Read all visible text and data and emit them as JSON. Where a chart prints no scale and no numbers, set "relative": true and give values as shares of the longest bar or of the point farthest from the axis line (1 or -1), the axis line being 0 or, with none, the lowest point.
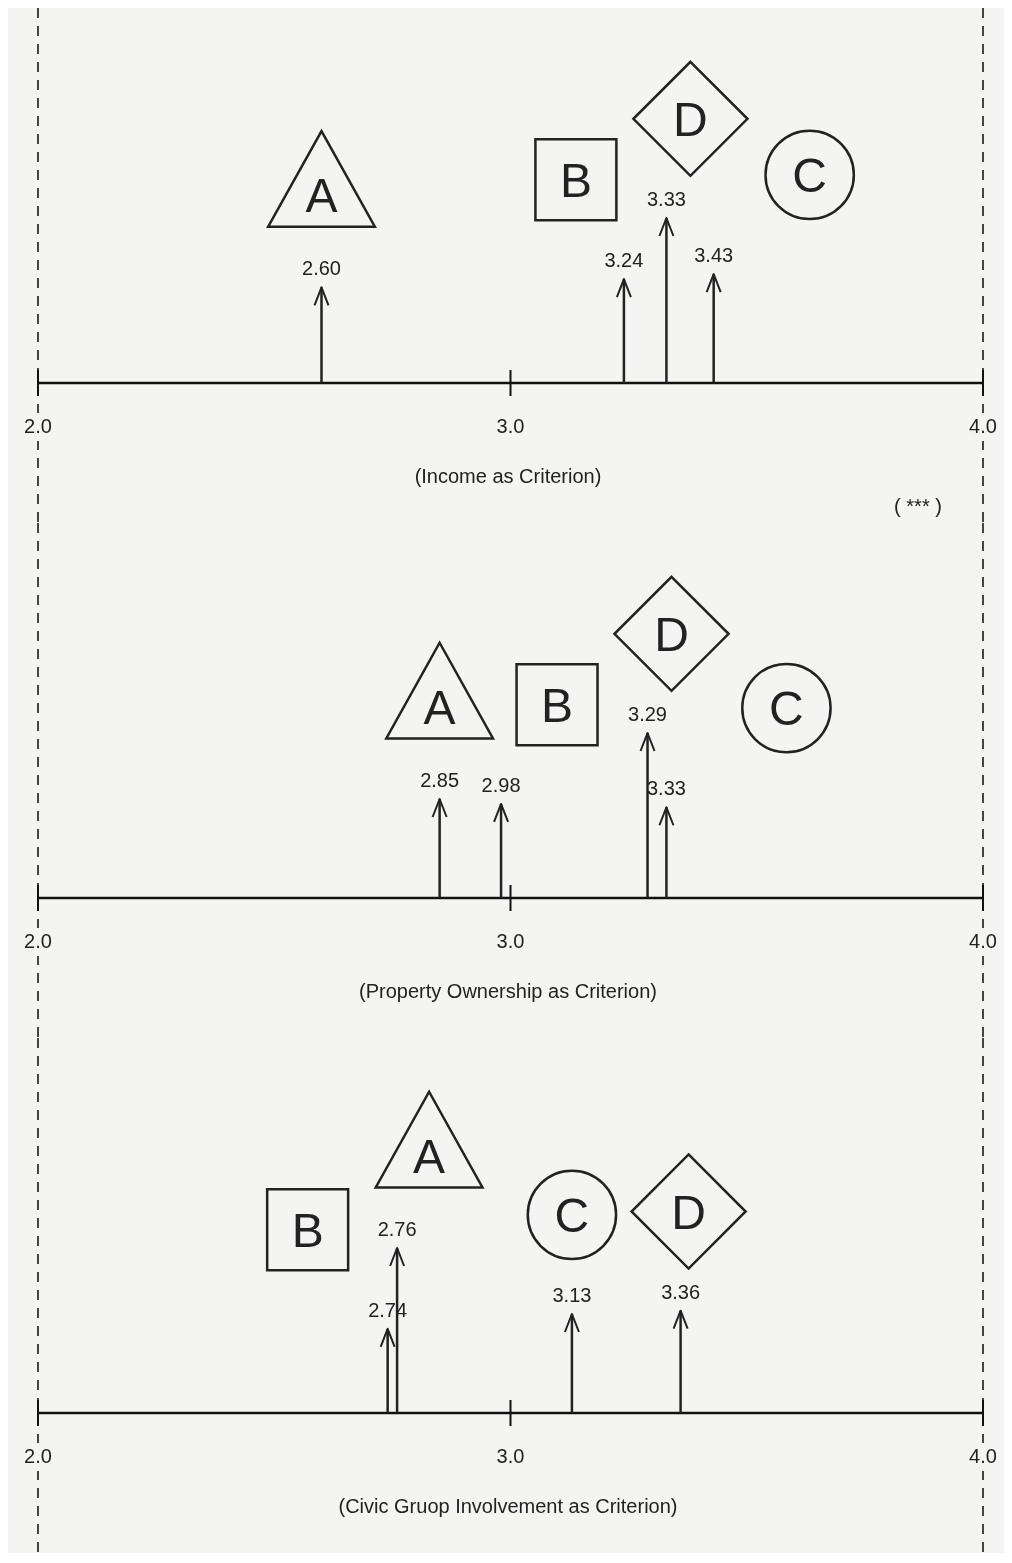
{
  "chart_data": [
    {
      "type": "bar",
      "relative": true,
      "xlabel": "(Income as Criterion)",
      "xlim": [
        2.0,
        4.0
      ],
      "xticks": [
        {
          "value": 2,
          "label": "2.0"
        },
        {
          "value": 3,
          "label": "3.0"
        },
        {
          "value": 4,
          "label": "4.0"
        }
      ],
      "legend": "top",
      "series": [
        {
          "name": "A",
          "marker": "triangle",
          "color": "#222222",
          "x": [
            2.6
          ],
          "values": [
            0.58
          ]
        },
        {
          "name": "B",
          "marker": "square",
          "color": "#222222",
          "x": [
            3.24
          ],
          "values": [
            0.63
          ]
        },
        {
          "name": "D",
          "marker": "diamond",
          "color": "#222222",
          "x": [
            3.33
          ],
          "values": [
            1
          ]
        },
        {
          "name": "C",
          "marker": "circle",
          "color": "#222222",
          "x": [
            3.43
          ],
          "values": [
            0.66
          ]
        }
      ],
      "annotations": [
        {
          "text": "2.60",
          "x": 2.6,
          "y": 0.58
        },
        {
          "text": "3.24",
          "x": 3.24,
          "y": 0.63
        },
        {
          "text": "3.33",
          "x": 3.33,
          "y": 1
        },
        {
          "text": "3.43",
          "x": 3.43,
          "y": 0.66
        },
        "( *** )"
      ],
      "ref_lines": [
        {
          "axis": "x",
          "value": 2.0,
          "line_style": "dashed"
        },
        {
          "axis": "x",
          "value": 4.0,
          "line_style": "dashed"
        }
      ]
    },
    {
      "type": "bar",
      "relative": true,
      "xlabel": "(Property Ownership as Criterion)",
      "xlim": [
        2.0,
        4.0
      ],
      "xticks": [
        {
          "value": 2,
          "label": "2.0"
        },
        {
          "value": 3,
          "label": "3.0"
        },
        {
          "value": 4,
          "label": "4.0"
        }
      ],
      "legend": "top",
      "series": [
        {
          "name": "A",
          "marker": "triangle",
          "color": "#222222",
          "x": [
            2.85
          ],
          "values": [
            0.6
          ]
        },
        {
          "name": "B",
          "marker": "square",
          "color": "#222222",
          "x": [
            2.98
          ],
          "values": [
            0.57
          ]
        },
        {
          "name": "D",
          "marker": "diamond",
          "color": "#222222",
          "x": [
            3.29
          ],
          "values": [
            1
          ]
        },
        {
          "name": "C",
          "marker": "circle",
          "color": "#222222",
          "x": [
            3.33
          ],
          "values": [
            0.55
          ]
        }
      ],
      "annotations": [
        {
          "text": "2.85",
          "x": 2.85,
          "y": 0.6
        },
        {
          "text": "2.98",
          "x": 2.98,
          "y": 0.57
        },
        {
          "text": "3.29",
          "x": 3.29,
          "y": 1
        },
        {
          "text": "3.33",
          "x": 3.33,
          "y": 0.55
        }
      ],
      "ref_lines": [
        {
          "axis": "x",
          "value": 2.0,
          "line_style": "dashed"
        },
        {
          "axis": "x",
          "value": 4.0,
          "line_style": "dashed"
        }
      ]
    },
    {
      "type": "bar",
      "relative": true,
      "xlabel": "(Civic Gruop Involvement as Criterion)",
      "xlim": [
        2.0,
        4.0
      ],
      "xticks": [
        {
          "value": 2,
          "label": "2.0"
        },
        {
          "value": 3,
          "label": "3.0"
        },
        {
          "value": 4,
          "label": "4.0"
        }
      ],
      "legend": "top",
      "series": [
        {
          "name": "B",
          "marker": "square",
          "color": "#222222",
          "x": [
            2.74
          ],
          "values": [
            0.51
          ]
        },
        {
          "name": "A",
          "marker": "triangle",
          "color": "#222222",
          "x": [
            2.76
          ],
          "values": [
            1
          ]
        },
        {
          "name": "C",
          "marker": "circle",
          "color": "#222222",
          "x": [
            3.13
          ],
          "values": [
            0.6
          ]
        },
        {
          "name": "D",
          "marker": "diamond",
          "color": "#222222",
          "x": [
            3.36
          ],
          "values": [
            0.62
          ]
        }
      ],
      "annotations": [
        {
          "text": "2.74",
          "x": 2.74,
          "y": 0.51
        },
        {
          "text": "2.76",
          "x": 2.76,
          "y": 1
        },
        {
          "text": "3.13",
          "x": 3.13,
          "y": 0.6
        },
        {
          "text": "3.36",
          "x": 3.36,
          "y": 0.62
        }
      ],
      "ref_lines": [
        {
          "axis": "x",
          "value": 2.0,
          "line_style": "dashed"
        },
        {
          "axis": "x",
          "value": 4.0,
          "line_style": "dashed"
        }
      ]
    }
  ]
}
